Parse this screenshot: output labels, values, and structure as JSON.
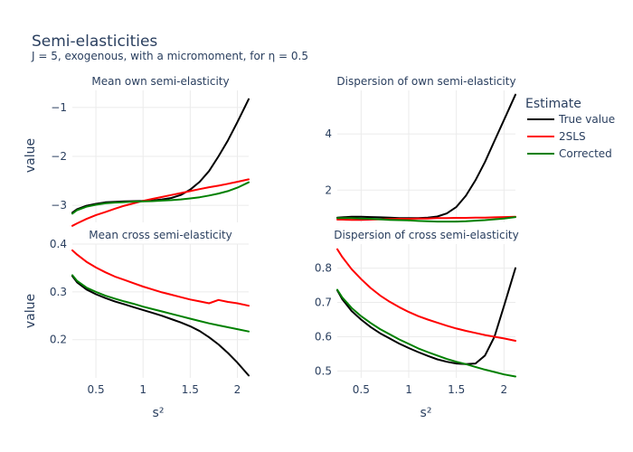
{
  "chart_data": {
    "type": "line",
    "title": "Semi-elasticities",
    "subtitle": "J = 5, exogenous, with a micromoment,  for η = 0.5",
    "xlabel": "s²",
    "ylabel": "value",
    "legend_title": "Estimate",
    "legend_position": "top-right",
    "grid": true,
    "series_names": [
      "True value",
      "2SLS",
      "Corrected"
    ],
    "series_colors": [
      "#000000",
      "#ff0000",
      "#008000"
    ],
    "panels": [
      {
        "title": "Mean own semi-elasticity",
        "xlim": [
          0.25,
          2.12
        ],
        "ylim": [
          -3.35,
          -0.65
        ],
        "yticks": [
          -3,
          -2,
          -1
        ],
        "ytick_labels": [
          "−3",
          "−2",
          "−1"
        ],
        "xticks": [
          0.5,
          1,
          1.5,
          2
        ],
        "xtick_labels": [],
        "x": [
          0.25,
          0.3,
          0.4,
          0.5,
          0.6,
          0.7,
          0.8,
          0.9,
          1.0,
          1.1,
          1.2,
          1.3,
          1.4,
          1.5,
          1.6,
          1.7,
          1.8,
          1.9,
          2.0,
          2.12
        ],
        "series": [
          {
            "name": "True value",
            "values": [
              -3.15,
              -3.08,
              -3.01,
              -2.97,
              -2.94,
              -2.93,
              -2.92,
              -2.915,
              -2.91,
              -2.9,
              -2.88,
              -2.85,
              -2.79,
              -2.68,
              -2.52,
              -2.3,
              -2.0,
              -1.67,
              -1.3,
              -0.83
            ]
          },
          {
            "name": "2SLS",
            "values": [
              -3.42,
              -3.37,
              -3.28,
              -3.2,
              -3.14,
              -3.07,
              -3.01,
              -2.96,
              -2.91,
              -2.87,
              -2.83,
              -2.79,
              -2.75,
              -2.71,
              -2.67,
              -2.63,
              -2.6,
              -2.56,
              -2.52,
              -2.47
            ]
          },
          {
            "name": "Corrected",
            "values": [
              -3.17,
              -3.1,
              -3.03,
              -2.99,
              -2.96,
              -2.945,
              -2.935,
              -2.925,
              -2.92,
              -2.915,
              -2.905,
              -2.895,
              -2.88,
              -2.86,
              -2.835,
              -2.8,
              -2.76,
              -2.71,
              -2.64,
              -2.53
            ]
          }
        ]
      },
      {
        "title": "Dispersion of own semi-elasticity",
        "xlim": [
          0.25,
          2.12
        ],
        "ylim": [
          0.85,
          5.55
        ],
        "yticks": [
          2,
          4
        ],
        "ytick_labels": [
          "2",
          "4"
        ],
        "xticks": [
          0.5,
          1,
          1.5,
          2
        ],
        "xtick_labels": [],
        "x": [
          0.25,
          0.3,
          0.4,
          0.5,
          0.6,
          0.7,
          0.8,
          0.9,
          1.0,
          1.1,
          1.2,
          1.3,
          1.4,
          1.5,
          1.6,
          1.7,
          1.8,
          1.9,
          2.0,
          2.12
        ],
        "series": [
          {
            "name": "True value",
            "values": [
              1.02,
              1.03,
              1.05,
              1.05,
              1.04,
              1.03,
              1.02,
              1.0,
              1.0,
              1.0,
              1.02,
              1.06,
              1.17,
              1.4,
              1.8,
              2.35,
              3.0,
              3.75,
              4.5,
              5.4
            ]
          },
          {
            "name": "2SLS",
            "values": [
              0.95,
              0.95,
              0.94,
              0.94,
              0.95,
              0.96,
              0.97,
              0.98,
              0.98,
              0.99,
              0.99,
              1.0,
              1.0,
              1.01,
              1.01,
              1.02,
              1.02,
              1.03,
              1.04,
              1.05
            ]
          },
          {
            "name": "Corrected",
            "values": [
              1.0,
              1.0,
              1.0,
              0.99,
              0.98,
              0.96,
              0.94,
              0.93,
              0.92,
              0.9,
              0.89,
              0.88,
              0.88,
              0.88,
              0.89,
              0.91,
              0.93,
              0.96,
              0.99,
              1.04
            ]
          }
        ]
      },
      {
        "title": "Mean cross semi-elasticity",
        "xlim": [
          0.25,
          2.12
        ],
        "ylim": [
          0.12,
          0.4
        ],
        "yticks": [
          0.2,
          0.3,
          0.4
        ],
        "ytick_labels": [
          "0.2",
          "0.3",
          "0.4"
        ],
        "xticks": [
          0.5,
          1,
          1.5,
          2
        ],
        "xtick_labels": [
          "0.5",
          "1",
          "1.5",
          "2"
        ],
        "x": [
          0.25,
          0.3,
          0.4,
          0.5,
          0.6,
          0.7,
          0.8,
          0.9,
          1.0,
          1.1,
          1.2,
          1.3,
          1.4,
          1.5,
          1.6,
          1.7,
          1.8,
          1.9,
          2.0,
          2.12
        ],
        "series": [
          {
            "name": "True value",
            "values": [
              0.333,
              0.32,
              0.305,
              0.295,
              0.287,
              0.28,
              0.274,
              0.268,
              0.262,
              0.256,
              0.25,
              0.243,
              0.236,
              0.228,
              0.218,
              0.205,
              0.19,
              0.172,
              0.152,
              0.125
            ]
          },
          {
            "name": "2SLS",
            "values": [
              0.387,
              0.378,
              0.363,
              0.351,
              0.341,
              0.332,
              0.325,
              0.318,
              0.311,
              0.305,
              0.299,
              0.294,
              0.289,
              0.284,
              0.28,
              0.276,
              0.283,
              0.279,
              0.276,
              0.271
            ]
          },
          {
            "name": "Corrected",
            "values": [
              0.335,
              0.323,
              0.309,
              0.3,
              0.292,
              0.286,
              0.28,
              0.275,
              0.269,
              0.264,
              0.259,
              0.254,
              0.249,
              0.244,
              0.239,
              0.234,
              0.23,
              0.226,
              0.222,
              0.217
            ]
          }
        ]
      },
      {
        "title": "Dispersion of cross semi-elasticity",
        "xlim": [
          0.25,
          2.12
        ],
        "ylim": [
          0.48,
          0.87
        ],
        "yticks": [
          0.5,
          0.6,
          0.7,
          0.8
        ],
        "ytick_labels": [
          "0.5",
          "0.6",
          "0.7",
          "0.8"
        ],
        "xticks": [
          0.5,
          1,
          1.5,
          2
        ],
        "xtick_labels": [
          "0.5",
          "1",
          "1.5",
          "2"
        ],
        "x": [
          0.25,
          0.3,
          0.4,
          0.5,
          0.6,
          0.7,
          0.8,
          0.9,
          1.0,
          1.1,
          1.2,
          1.3,
          1.4,
          1.5,
          1.6,
          1.7,
          1.8,
          1.9,
          2.0,
          2.12
        ],
        "series": [
          {
            "name": "True value",
            "values": [
              0.735,
              0.71,
              0.675,
              0.65,
              0.628,
              0.61,
              0.595,
              0.58,
              0.567,
              0.555,
              0.544,
              0.534,
              0.527,
              0.522,
              0.52,
              0.522,
              0.545,
              0.6,
              0.69,
              0.8
            ]
          },
          {
            "name": "2SLS",
            "values": [
              0.855,
              0.833,
              0.797,
              0.768,
              0.742,
              0.72,
              0.702,
              0.686,
              0.672,
              0.66,
              0.65,
              0.641,
              0.632,
              0.624,
              0.617,
              0.611,
              0.605,
              0.6,
              0.595,
              0.588
            ]
          },
          {
            "name": "Corrected",
            "values": [
              0.737,
              0.715,
              0.684,
              0.66,
              0.64,
              0.622,
              0.607,
              0.592,
              0.579,
              0.566,
              0.555,
              0.545,
              0.535,
              0.527,
              0.52,
              0.512,
              0.504,
              0.497,
              0.49,
              0.484
            ]
          }
        ]
      }
    ]
  }
}
